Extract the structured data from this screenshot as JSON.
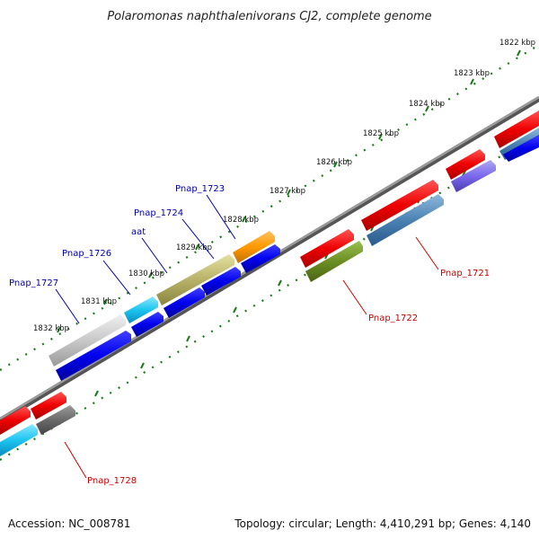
{
  "title": "Polaromonas naphthalenivorans CJ2, complete genome",
  "footer": {
    "accession": "Accession: NC_008781",
    "summary": "Topology: circular; Length: 4,410,291 bp; Genes: 4,140"
  },
  "ruler": {
    "ticks": [
      "1822 kbp",
      "1823 kbp",
      "1824 kbp",
      "1825 kbp",
      "1826 kbp",
      "1827 kbp",
      "1828 kbp",
      "1829 kbp",
      "1830 kbp",
      "1831 kbp",
      "1832 kbp"
    ]
  },
  "genes": {
    "upper": [
      {
        "label": "Pnap_1723",
        "color": "#0000aa"
      },
      {
        "label": "Pnap_1724",
        "color": "#0000aa"
      },
      {
        "label": "aat",
        "color": "#0000aa"
      },
      {
        "label": "Pnap_1726",
        "color": "#0000aa"
      },
      {
        "label": "Pnap_1727",
        "color": "#0000aa"
      }
    ],
    "lower": [
      {
        "label": "Pnap_1721",
        "color": "#cc0000"
      },
      {
        "label": "Pnap_1722",
        "color": "#cc0000"
      },
      {
        "label": "Pnap_1728",
        "color": "#cc0000"
      }
    ]
  },
  "colors": {
    "backbone": "#7a7a7a",
    "ruler_dots": "#1a7a1a",
    "forward": "#0000dd",
    "reverse": "#dd0000"
  }
}
